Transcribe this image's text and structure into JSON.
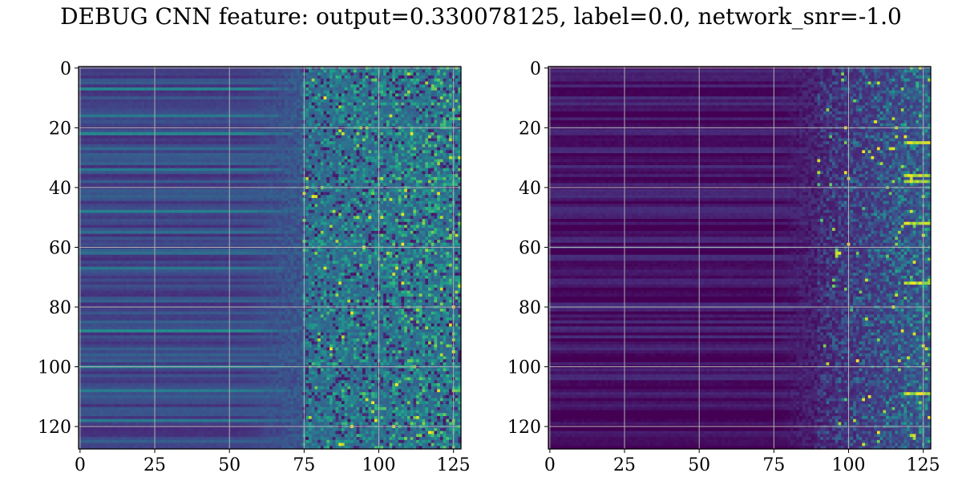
{
  "figure": {
    "title": "DEBUG CNN feature: output=0.330078125, label=0.0, network_snr=-1.0"
  },
  "colors": {
    "colormap": "viridis",
    "viridis_stops": [
      "#440154",
      "#482777",
      "#3f4a8a",
      "#31688e",
      "#26828e",
      "#1f9e89",
      "#35b779",
      "#6ece58",
      "#b5de2b",
      "#fde725"
    ],
    "grid": "#b0b0b0",
    "axes_border": "#000000"
  },
  "chart_data": [
    {
      "type": "heatmap",
      "panel": "left",
      "title": "",
      "xlabel": "",
      "ylabel": "",
      "rows": 128,
      "cols": 128,
      "xlim": [
        0,
        127
      ],
      "ylim": [
        127,
        0
      ],
      "y_inverted": true,
      "x_ticks": [
        0,
        25,
        50,
        75,
        100,
        125
      ],
      "y_ticks": [
        0,
        20,
        40,
        60,
        80,
        100,
        120
      ],
      "grid": true,
      "pattern": {
        "description_keys": [
          "smooth_cols_end",
          "noisy_cols_start",
          "base_level",
          "noise_level"
        ],
        "smooth_cols_end": 55,
        "noisy_cols_start": 75,
        "base_level": 0.22,
        "noise_level": 0.35,
        "bright_rows": [
          7,
          16,
          22,
          27,
          34,
          48,
          55,
          62,
          67,
          88,
          100,
          108,
          118
        ]
      }
    },
    {
      "type": "heatmap",
      "panel": "right",
      "title": "",
      "xlabel": "",
      "ylabel": "",
      "rows": 128,
      "cols": 128,
      "xlim": [
        0,
        127
      ],
      "ylim": [
        127,
        0
      ],
      "y_inverted": true,
      "x_ticks": [
        0,
        25,
        50,
        75,
        100,
        125
      ],
      "y_ticks": [
        0,
        20,
        40,
        60,
        80,
        100,
        120
      ],
      "grid": true,
      "pattern": {
        "smooth_cols_end": 75,
        "noisy_cols_start": 90,
        "base_level": 0.05,
        "noise_level": 0.3,
        "bright_rows": [
          25,
          36,
          38,
          52,
          72,
          109
        ]
      }
    }
  ]
}
